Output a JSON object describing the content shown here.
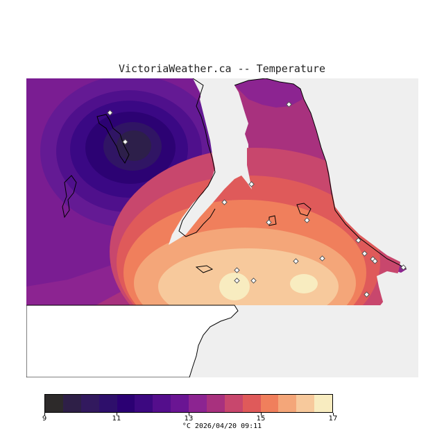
{
  "title": "VictoriaWeather.ca -- Temperature",
  "legend": {
    "colors": [
      "#2d2a2a",
      "#2e1f47",
      "#32195e",
      "#2e0f6b",
      "#2b0073",
      "#3c0880",
      "#540e8c",
      "#6a1593",
      "#8c2491",
      "#a8317e",
      "#c8476d",
      "#df5a5a",
      "#f07f5c",
      "#f4a679",
      "#f7c99c",
      "#f8ecc0"
    ],
    "ticks": [
      {
        "value": 9,
        "label": "9"
      },
      {
        "value": 11,
        "label": "11"
      },
      {
        "value": 13,
        "label": "13"
      },
      {
        "value": 15,
        "label": "15"
      },
      {
        "value": 17,
        "label": "17"
      }
    ],
    "min": 9,
    "max": 17
  },
  "footer": "°C  2026/04/20 09:11",
  "stations": 18
}
